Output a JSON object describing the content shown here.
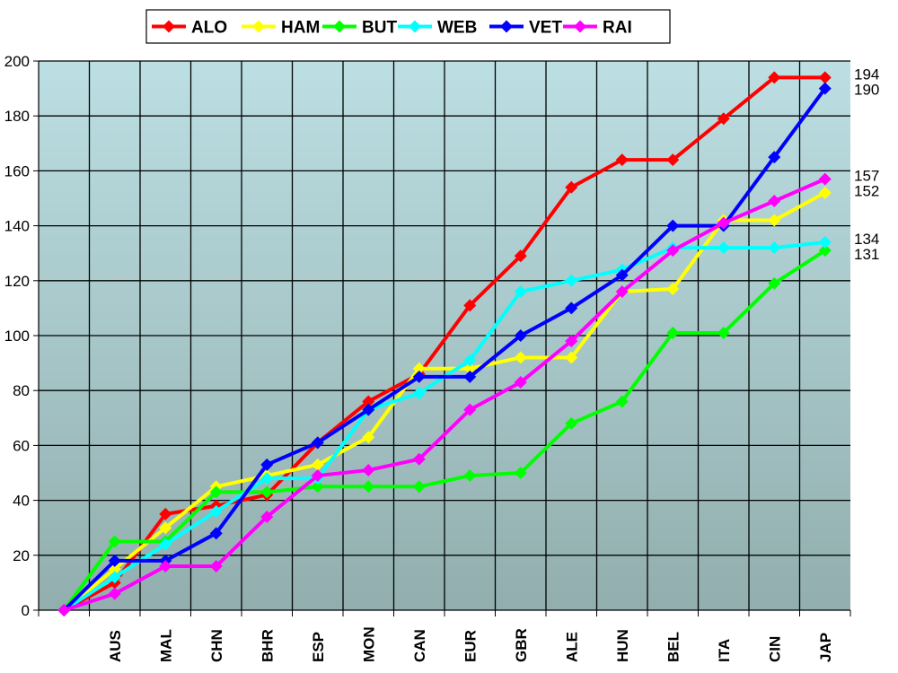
{
  "chart_data": {
    "type": "line",
    "title": "",
    "xlabel": "",
    "ylabel": "",
    "ylim": [
      0,
      200
    ],
    "yticks": [
      0,
      20,
      40,
      60,
      80,
      100,
      120,
      140,
      160,
      180,
      200
    ],
    "grid": true,
    "legend_position": "top",
    "categories": [
      "",
      "AUS",
      "MAL",
      "CHN",
      "BHR",
      "ESP",
      "MON",
      "CAN",
      "EUR",
      "GBR",
      "ALE",
      "HUN",
      "BEL",
      "ITA",
      "CIN",
      "JAP"
    ],
    "series": [
      {
        "name": "ALO",
        "color": "#FF0000",
        "values": [
          0,
          10,
          35,
          38,
          42,
          61,
          76,
          86,
          111,
          129,
          154,
          164,
          164,
          179,
          194,
          194
        ],
        "end_label": "194"
      },
      {
        "name": "HAM",
        "color": "#FFFF00",
        "values": [
          0,
          15,
          30,
          45,
          49,
          53,
          63,
          88,
          88,
          92,
          92,
          116,
          117,
          142,
          142,
          152
        ],
        "end_label": "152"
      },
      {
        "name": "BUT",
        "color": "#00FF00",
        "values": [
          0,
          25,
          25,
          43,
          43,
          45,
          45,
          45,
          49,
          50,
          68,
          76,
          101,
          101,
          119,
          131
        ],
        "end_label": "131"
      },
      {
        "name": "WEB",
        "color": "#00FFFF",
        "values": [
          0,
          12,
          24,
          36,
          48,
          48,
          73,
          79,
          91,
          116,
          120,
          124,
          132,
          132,
          132,
          134
        ],
        "end_label": "134"
      },
      {
        "name": "VET",
        "color": "#0000FF",
        "values": [
          0,
          18,
          18,
          28,
          53,
          61,
          73,
          85,
          85,
          100,
          110,
          122,
          140,
          140,
          165,
          190
        ],
        "end_label": "190"
      },
      {
        "name": "RAI",
        "color": "#FF00FF",
        "values": [
          0,
          6,
          16,
          16,
          34,
          49,
          51,
          55,
          73,
          83,
          98,
          116,
          131,
          141,
          149,
          157
        ],
        "end_label": "157"
      }
    ]
  },
  "legend": {
    "items": [
      "ALO",
      "HAM",
      "BUT",
      "WEB",
      "VET",
      "RAI"
    ]
  },
  "style": {
    "plot_bg_top": "#BCDFE3",
    "plot_bg_bottom": "#92AEAE",
    "grid_color": "#000000"
  }
}
